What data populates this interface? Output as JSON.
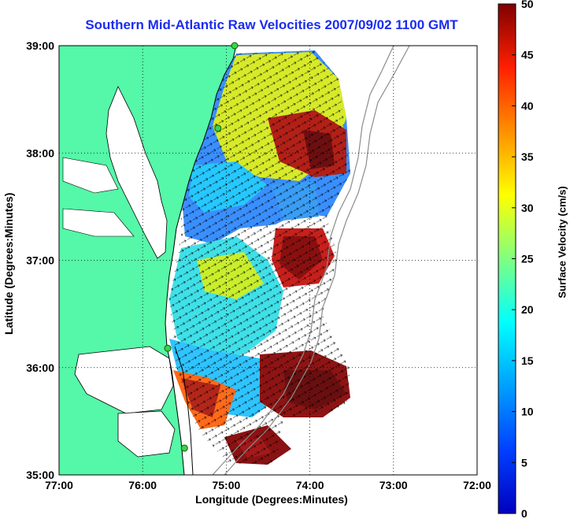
{
  "title": "Southern Mid-Atlantic Raw Velocities 2007/09/02 1100 GMT",
  "x_axis": {
    "label": "Longitude (Degrees:Minutes)",
    "ticks": [
      "77:00",
      "76:00",
      "75:00",
      "74:00",
      "73:00",
      "72:00"
    ]
  },
  "y_axis": {
    "label": "Latitude (Degrees:Minutes)",
    "ticks": [
      "39:00",
      "38:00",
      "37:00",
      "36:00",
      "35:00"
    ]
  },
  "colorbar": {
    "label": "Surface Velocity (cm/s)",
    "min": 0,
    "max": 50,
    "ticks": [
      "50",
      "45",
      "40",
      "35",
      "30",
      "25",
      "20",
      "15",
      "10",
      "5",
      "0"
    ],
    "colormap": "jet"
  },
  "map": {
    "lon_range": [
      -77,
      -72
    ],
    "lat_range": [
      35,
      39
    ],
    "land_color": "#55f7a8",
    "water_color": "#ffffff",
    "grid": "dotted"
  },
  "stations": [
    {
      "lon": -74.9,
      "lat": 39.0
    },
    {
      "lon": -75.1,
      "lat": 38.23
    },
    {
      "lon": -75.7,
      "lat": 36.18
    },
    {
      "lon": -75.5,
      "lat": 35.25
    }
  ]
}
